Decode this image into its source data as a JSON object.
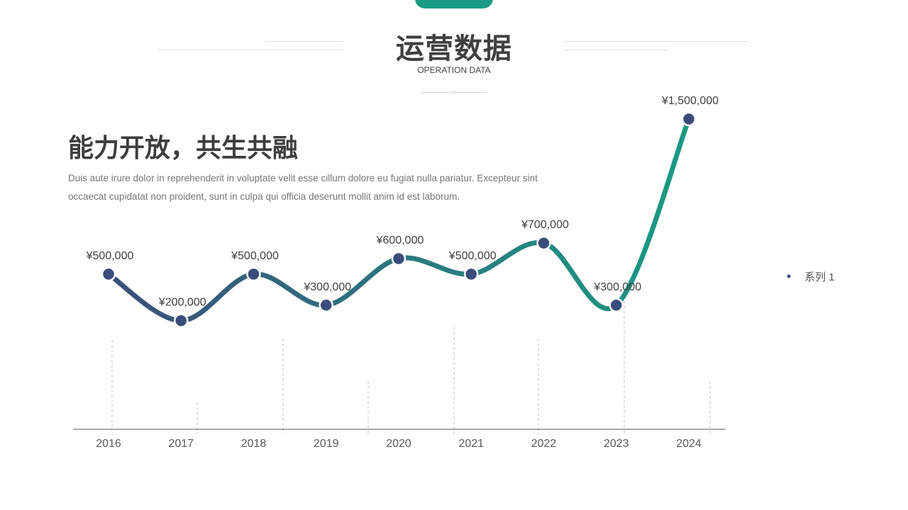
{
  "header": {
    "title": "运营数据",
    "subtitle": "OPERATION DATA"
  },
  "content": {
    "headline": "能力开放，共生共融",
    "body": "Duis aute irure dolor in reprehenderit in voluptate velit esse cillum dolore eu fugiat nulla pariatur. Excepteur sint occaecat cupidatat non proident, sunt in culpa qui officia deserunt mollit anim id est laborum."
  },
  "colors": {
    "accent_green": "#1a9a82",
    "line_start": "#3a4f7a",
    "line_end": "#1a9a82",
    "marker": "#3a4c7c",
    "text_dark": "#404040",
    "text_muted": "#767676"
  },
  "chart_data": {
    "type": "line",
    "categories": [
      "2016",
      "2017",
      "2018",
      "2019",
      "2020",
      "2021",
      "2022",
      "2023",
      "2024"
    ],
    "series": [
      {
        "name": "系列 1",
        "values": [
          500000,
          200000,
          500000,
          300000,
          600000,
          500000,
          700000,
          300000,
          1500000
        ],
        "labels": [
          "¥500,000",
          "¥200,000",
          "¥500,000",
          "¥300,000",
          "¥600,000",
          "¥500,000",
          "¥700,000",
          "¥300,000",
          "¥1,500,000"
        ]
      }
    ],
    "title": "",
    "xlabel": "",
    "ylabel": "",
    "ylim": [
      -500000,
      1600000
    ],
    "grid": false,
    "legend": "right",
    "smooth": true,
    "line_gradient": true
  }
}
